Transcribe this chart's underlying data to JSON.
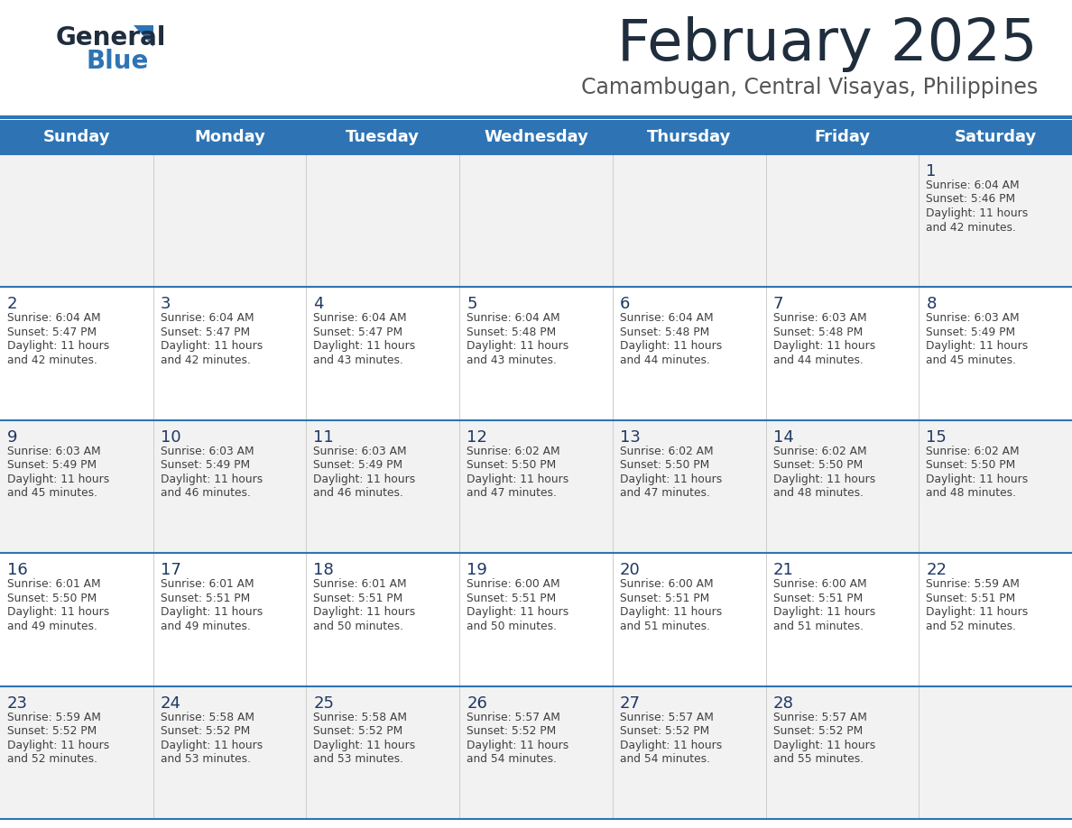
{
  "title": "February 2025",
  "subtitle": "Camambugan, Central Visayas, Philippines",
  "header_bg": "#2E74B5",
  "header_text_color": "#FFFFFF",
  "title_color": "#222222",
  "subtitle_color": "#444444",
  "day_headers": [
    "Sunday",
    "Monday",
    "Tuesday",
    "Wednesday",
    "Thursday",
    "Friday",
    "Saturday"
  ],
  "cell_bg_odd_row": "#F2F2F2",
  "cell_bg_even_row": "#FFFFFF",
  "cell_border_color": "#2E74B5",
  "day_number_color": "#1F3864",
  "info_text_color": "#404040",
  "calendar_data": [
    [
      null,
      null,
      null,
      null,
      null,
      null,
      {
        "day": "1",
        "sunrise": "6:04 AM",
        "sunset": "5:46 PM",
        "daylight_l1": "Daylight: 11 hours",
        "daylight_l2": "and 42 minutes."
      }
    ],
    [
      {
        "day": "2",
        "sunrise": "6:04 AM",
        "sunset": "5:47 PM",
        "daylight_l1": "Daylight: 11 hours",
        "daylight_l2": "and 42 minutes."
      },
      {
        "day": "3",
        "sunrise": "6:04 AM",
        "sunset": "5:47 PM",
        "daylight_l1": "Daylight: 11 hours",
        "daylight_l2": "and 42 minutes."
      },
      {
        "day": "4",
        "sunrise": "6:04 AM",
        "sunset": "5:47 PM",
        "daylight_l1": "Daylight: 11 hours",
        "daylight_l2": "and 43 minutes."
      },
      {
        "day": "5",
        "sunrise": "6:04 AM",
        "sunset": "5:48 PM",
        "daylight_l1": "Daylight: 11 hours",
        "daylight_l2": "and 43 minutes."
      },
      {
        "day": "6",
        "sunrise": "6:04 AM",
        "sunset": "5:48 PM",
        "daylight_l1": "Daylight: 11 hours",
        "daylight_l2": "and 44 minutes."
      },
      {
        "day": "7",
        "sunrise": "6:03 AM",
        "sunset": "5:48 PM",
        "daylight_l1": "Daylight: 11 hours",
        "daylight_l2": "and 44 minutes."
      },
      {
        "day": "8",
        "sunrise": "6:03 AM",
        "sunset": "5:49 PM",
        "daylight_l1": "Daylight: 11 hours",
        "daylight_l2": "and 45 minutes."
      }
    ],
    [
      {
        "day": "9",
        "sunrise": "6:03 AM",
        "sunset": "5:49 PM",
        "daylight_l1": "Daylight: 11 hours",
        "daylight_l2": "and 45 minutes."
      },
      {
        "day": "10",
        "sunrise": "6:03 AM",
        "sunset": "5:49 PM",
        "daylight_l1": "Daylight: 11 hours",
        "daylight_l2": "and 46 minutes."
      },
      {
        "day": "11",
        "sunrise": "6:03 AM",
        "sunset": "5:49 PM",
        "daylight_l1": "Daylight: 11 hours",
        "daylight_l2": "and 46 minutes."
      },
      {
        "day": "12",
        "sunrise": "6:02 AM",
        "sunset": "5:50 PM",
        "daylight_l1": "Daylight: 11 hours",
        "daylight_l2": "and 47 minutes."
      },
      {
        "day": "13",
        "sunrise": "6:02 AM",
        "sunset": "5:50 PM",
        "daylight_l1": "Daylight: 11 hours",
        "daylight_l2": "and 47 minutes."
      },
      {
        "day": "14",
        "sunrise": "6:02 AM",
        "sunset": "5:50 PM",
        "daylight_l1": "Daylight: 11 hours",
        "daylight_l2": "and 48 minutes."
      },
      {
        "day": "15",
        "sunrise": "6:02 AM",
        "sunset": "5:50 PM",
        "daylight_l1": "Daylight: 11 hours",
        "daylight_l2": "and 48 minutes."
      }
    ],
    [
      {
        "day": "16",
        "sunrise": "6:01 AM",
        "sunset": "5:50 PM",
        "daylight_l1": "Daylight: 11 hours",
        "daylight_l2": "and 49 minutes."
      },
      {
        "day": "17",
        "sunrise": "6:01 AM",
        "sunset": "5:51 PM",
        "daylight_l1": "Daylight: 11 hours",
        "daylight_l2": "and 49 minutes."
      },
      {
        "day": "18",
        "sunrise": "6:01 AM",
        "sunset": "5:51 PM",
        "daylight_l1": "Daylight: 11 hours",
        "daylight_l2": "and 50 minutes."
      },
      {
        "day": "19",
        "sunrise": "6:00 AM",
        "sunset": "5:51 PM",
        "daylight_l1": "Daylight: 11 hours",
        "daylight_l2": "and 50 minutes."
      },
      {
        "day": "20",
        "sunrise": "6:00 AM",
        "sunset": "5:51 PM",
        "daylight_l1": "Daylight: 11 hours",
        "daylight_l2": "and 51 minutes."
      },
      {
        "day": "21",
        "sunrise": "6:00 AM",
        "sunset": "5:51 PM",
        "daylight_l1": "Daylight: 11 hours",
        "daylight_l2": "and 51 minutes."
      },
      {
        "day": "22",
        "sunrise": "5:59 AM",
        "sunset": "5:51 PM",
        "daylight_l1": "Daylight: 11 hours",
        "daylight_l2": "and 52 minutes."
      }
    ],
    [
      {
        "day": "23",
        "sunrise": "5:59 AM",
        "sunset": "5:52 PM",
        "daylight_l1": "Daylight: 11 hours",
        "daylight_l2": "and 52 minutes."
      },
      {
        "day": "24",
        "sunrise": "5:58 AM",
        "sunset": "5:52 PM",
        "daylight_l1": "Daylight: 11 hours",
        "daylight_l2": "and 53 minutes."
      },
      {
        "day": "25",
        "sunrise": "5:58 AM",
        "sunset": "5:52 PM",
        "daylight_l1": "Daylight: 11 hours",
        "daylight_l2": "and 53 minutes."
      },
      {
        "day": "26",
        "sunrise": "5:57 AM",
        "sunset": "5:52 PM",
        "daylight_l1": "Daylight: 11 hours",
        "daylight_l2": "and 54 minutes."
      },
      {
        "day": "27",
        "sunrise": "5:57 AM",
        "sunset": "5:52 PM",
        "daylight_l1": "Daylight: 11 hours",
        "daylight_l2": "and 54 minutes."
      },
      {
        "day": "28",
        "sunrise": "5:57 AM",
        "sunset": "5:52 PM",
        "daylight_l1": "Daylight: 11 hours",
        "daylight_l2": "and 55 minutes."
      },
      null
    ]
  ],
  "fig_width": 11.88,
  "fig_height": 9.18,
  "dpi": 100
}
